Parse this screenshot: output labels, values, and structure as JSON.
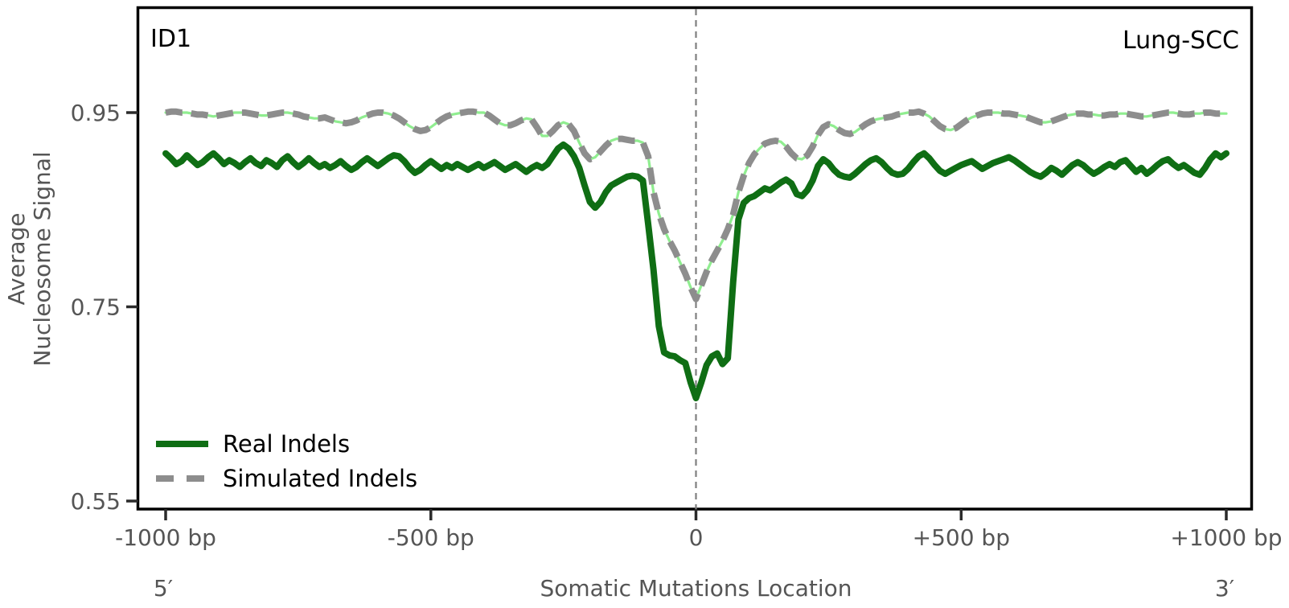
{
  "panel": {
    "id_label": "ID1",
    "cohort_label": "Lung-SCC"
  },
  "axes": {
    "y": {
      "label_line1": "Average",
      "label_line2": "Nucleosome Signal",
      "ticks": [
        "0.95",
        "0.75",
        "0.55"
      ],
      "tick_values": [
        0.95,
        0.75,
        0.55
      ]
    },
    "x": {
      "label": "Somatic Mutations Location",
      "left_end_label": "5′",
      "right_end_label": "3′",
      "ticks": [
        "-1000 bp",
        "-500 bp",
        "0",
        "+500 bp",
        "+1000 bp"
      ],
      "tick_values": [
        -1000,
        -500,
        0,
        500,
        1000
      ]
    }
  },
  "legend": {
    "items": [
      {
        "label": "Real Indels",
        "style": "solid",
        "color": "#0f6e14"
      },
      {
        "label": "Simulated Indels",
        "style": "dashed",
        "color": "#8d8d8d"
      }
    ]
  },
  "colors": {
    "real": "#0f6e14",
    "simulated": "#8d8d8d",
    "simulated_underlay": "#90ee90",
    "marker_line": "#7f7f7f",
    "axis": "#000000",
    "tick": "#2b2b2b"
  },
  "chart_data": {
    "type": "line",
    "title": "",
    "xlabel": "Somatic Mutations Location",
    "ylabel": "Average Nucleosome Signal",
    "x_start": -1000,
    "x_step": 10,
    "xlim": [
      -1000,
      1000
    ],
    "ylim": [
      0.55,
      0.95
    ],
    "y_ticks": [
      0.55,
      0.75,
      0.95
    ],
    "grid": false,
    "legend_position": "lower-left",
    "marker_line_x": 0,
    "series": [
      {
        "name": "Real Indels",
        "style": "solid",
        "color": "#0f6e14",
        "values": [
          0.908,
          0.903,
          0.897,
          0.9,
          0.906,
          0.901,
          0.896,
          0.899,
          0.904,
          0.908,
          0.903,
          0.897,
          0.901,
          0.898,
          0.894,
          0.899,
          0.903,
          0.898,
          0.895,
          0.901,
          0.898,
          0.894,
          0.901,
          0.905,
          0.899,
          0.894,
          0.898,
          0.903,
          0.898,
          0.894,
          0.897,
          0.893,
          0.896,
          0.9,
          0.895,
          0.891,
          0.894,
          0.899,
          0.903,
          0.899,
          0.895,
          0.899,
          0.903,
          0.906,
          0.905,
          0.9,
          0.893,
          0.888,
          0.891,
          0.896,
          0.9,
          0.896,
          0.892,
          0.896,
          0.893,
          0.897,
          0.894,
          0.891,
          0.894,
          0.897,
          0.893,
          0.896,
          0.899,
          0.895,
          0.891,
          0.894,
          0.897,
          0.893,
          0.889,
          0.893,
          0.896,
          0.893,
          0.897,
          0.905,
          0.913,
          0.917,
          0.913,
          0.905,
          0.893,
          0.875,
          0.858,
          0.852,
          0.858,
          0.868,
          0.875,
          0.878,
          0.881,
          0.884,
          0.885,
          0.884,
          0.88,
          0.835,
          0.788,
          0.73,
          0.703,
          0.7,
          0.699,
          0.695,
          0.692,
          0.672,
          0.656,
          0.672,
          0.69,
          0.699,
          0.702,
          0.691,
          0.697,
          0.775,
          0.84,
          0.857,
          0.862,
          0.864,
          0.868,
          0.872,
          0.87,
          0.874,
          0.878,
          0.881,
          0.877,
          0.866,
          0.864,
          0.87,
          0.88,
          0.895,
          0.902,
          0.898,
          0.891,
          0.886,
          0.884,
          0.883,
          0.887,
          0.892,
          0.897,
          0.901,
          0.903,
          0.899,
          0.893,
          0.888,
          0.886,
          0.887,
          0.892,
          0.899,
          0.905,
          0.908,
          0.903,
          0.896,
          0.89,
          0.887,
          0.89,
          0.893,
          0.896,
          0.898,
          0.9,
          0.896,
          0.892,
          0.895,
          0.898,
          0.9,
          0.902,
          0.904,
          0.901,
          0.897,
          0.893,
          0.889,
          0.886,
          0.884,
          0.888,
          0.893,
          0.89,
          0.886,
          0.891,
          0.896,
          0.899,
          0.896,
          0.891,
          0.887,
          0.89,
          0.894,
          0.897,
          0.894,
          0.899,
          0.901,
          0.895,
          0.889,
          0.893,
          0.887,
          0.891,
          0.896,
          0.9,
          0.902,
          0.897,
          0.893,
          0.896,
          0.892,
          0.888,
          0.886,
          0.893,
          0.902,
          0.908,
          0.904,
          0.908
        ]
      },
      {
        "name": "Simulated Indels",
        "style": "dashed",
        "color": "#8d8d8d",
        "underlay_color": "#90ee90",
        "values": [
          0.95,
          0.951,
          0.951,
          0.95,
          0.95,
          0.949,
          0.948,
          0.948,
          0.947,
          0.946,
          0.947,
          0.948,
          0.949,
          0.95,
          0.95,
          0.95,
          0.949,
          0.948,
          0.947,
          0.947,
          0.948,
          0.949,
          0.95,
          0.95,
          0.949,
          0.948,
          0.946,
          0.945,
          0.944,
          0.944,
          0.945,
          0.943,
          0.941,
          0.94,
          0.939,
          0.94,
          0.942,
          0.945,
          0.947,
          0.949,
          0.95,
          0.95,
          0.949,
          0.947,
          0.944,
          0.94,
          0.936,
          0.933,
          0.931,
          0.932,
          0.935,
          0.939,
          0.943,
          0.946,
          0.948,
          0.949,
          0.95,
          0.951,
          0.951,
          0.95,
          0.95,
          0.947,
          0.943,
          0.939,
          0.937,
          0.937,
          0.939,
          0.942,
          0.944,
          0.943,
          0.935,
          0.926,
          0.926,
          0.931,
          0.937,
          0.94,
          0.938,
          0.931,
          0.919,
          0.908,
          0.902,
          0.904,
          0.91,
          0.916,
          0.921,
          0.923,
          0.923,
          0.922,
          0.921,
          0.921,
          0.919,
          0.905,
          0.868,
          0.846,
          0.83,
          0.818,
          0.808,
          0.796,
          0.784,
          0.77,
          0.758,
          0.772,
          0.786,
          0.798,
          0.808,
          0.818,
          0.83,
          0.845,
          0.868,
          0.885,
          0.898,
          0.907,
          0.913,
          0.918,
          0.92,
          0.921,
          0.92,
          0.915,
          0.908,
          0.903,
          0.902,
          0.906,
          0.915,
          0.927,
          0.935,
          0.938,
          0.936,
          0.932,
          0.929,
          0.928,
          0.93,
          0.934,
          0.938,
          0.941,
          0.943,
          0.944,
          0.945,
          0.946,
          0.948,
          0.949,
          0.95,
          0.95,
          0.951,
          0.949,
          0.946,
          0.941,
          0.936,
          0.933,
          0.932,
          0.934,
          0.938,
          0.942,
          0.945,
          0.947,
          0.949,
          0.95,
          0.95,
          0.95,
          0.949,
          0.949,
          0.948,
          0.947,
          0.946,
          0.944,
          0.942,
          0.94,
          0.94,
          0.941,
          0.943,
          0.945,
          0.947,
          0.948,
          0.949,
          0.949,
          0.948,
          0.948,
          0.947,
          0.947,
          0.948,
          0.948,
          0.949,
          0.949,
          0.948,
          0.947,
          0.946,
          0.946,
          0.947,
          0.948,
          0.949,
          0.95,
          0.95,
          0.949,
          0.948,
          0.948,
          0.949,
          0.949,
          0.95,
          0.95,
          0.949,
          0.949,
          0.949
        ]
      }
    ]
  }
}
